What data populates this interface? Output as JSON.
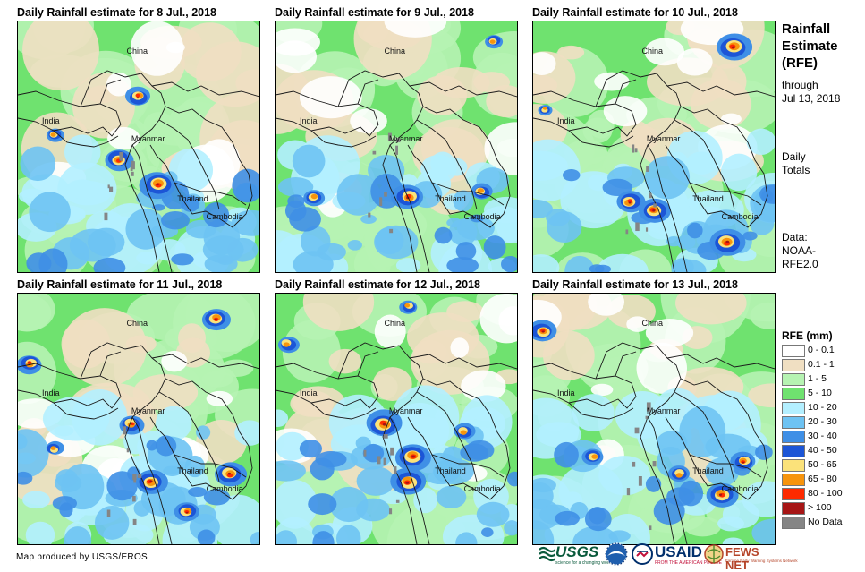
{
  "panels": [
    {
      "title": "Daily Rainfall estimate for 8 Jul., 2018",
      "seed": 8,
      "heavy": [
        [
          0.5,
          0.3,
          0.7
        ],
        [
          0.58,
          0.65,
          1.0
        ],
        [
          0.42,
          0.55,
          0.8
        ],
        [
          0.15,
          0.45,
          0.5
        ]
      ]
    },
    {
      "title": "Daily Rainfall estimate for 9 Jul., 2018",
      "seed": 9,
      "heavy": [
        [
          0.55,
          0.7,
          0.9
        ],
        [
          0.16,
          0.7,
          0.6
        ],
        [
          0.85,
          0.68,
          0.6
        ],
        [
          0.9,
          0.08,
          0.5
        ]
      ]
    },
    {
      "title": "Daily Rainfall estimate for 10 Jul., 2018",
      "seed": 10,
      "heavy": [
        [
          0.83,
          0.1,
          1.0
        ],
        [
          0.5,
          0.75,
          0.9
        ],
        [
          0.8,
          0.88,
          1.0
        ],
        [
          0.4,
          0.72,
          0.8
        ],
        [
          0.05,
          0.35,
          0.4
        ]
      ]
    },
    {
      "title": "Daily Rainfall estimate for 11 Jul., 2018",
      "seed": 11,
      "heavy": [
        [
          0.82,
          0.1,
          0.8
        ],
        [
          0.05,
          0.28,
          0.7
        ],
        [
          0.47,
          0.52,
          0.7
        ],
        [
          0.55,
          0.75,
          0.9
        ],
        [
          0.88,
          0.72,
          0.9
        ],
        [
          0.7,
          0.87,
          0.7
        ],
        [
          0.15,
          0.62,
          0.5
        ]
      ]
    },
    {
      "title": "Daily Rainfall estimate for 12 Jul., 2018",
      "seed": 12,
      "heavy": [
        [
          0.45,
          0.52,
          1.0
        ],
        [
          0.57,
          0.65,
          1.0
        ],
        [
          0.55,
          0.75,
          1.0
        ],
        [
          0.05,
          0.2,
          0.6
        ],
        [
          0.55,
          0.05,
          0.5
        ],
        [
          0.78,
          0.55,
          0.6
        ]
      ]
    },
    {
      "title": "Daily Rainfall estimate for 13 Jul., 2018",
      "seed": 13,
      "heavy": [
        [
          0.04,
          0.15,
          0.8
        ],
        [
          0.78,
          0.8,
          0.9
        ],
        [
          0.25,
          0.65,
          0.6
        ],
        [
          0.87,
          0.67,
          0.7
        ],
        [
          0.6,
          0.72,
          0.6
        ]
      ]
    }
  ],
  "map_labels": {
    "china": "China",
    "india": "India",
    "myanmar": "Myanmar",
    "thailand": "Thailand",
    "cambodia": "Cambodia"
  },
  "sidebar": {
    "title_line1": "Rainfall",
    "title_line2": "Estimate",
    "title_line3": "(RFE)",
    "through": "through",
    "date": "Jul 13, 2018",
    "daily": "Daily",
    "totals": "Totals",
    "data_label": "Data:",
    "data_source1": "NOAA-",
    "data_source2": "RFE2.0"
  },
  "legend": {
    "title": "RFE (mm)",
    "items": [
      {
        "label": "0 - 0.1",
        "color": "#ffffff"
      },
      {
        "label": "0.1 - 1",
        "color": "#f0dfc2"
      },
      {
        "label": "1 - 5",
        "color": "#b6f3b2"
      },
      {
        "label": "5 - 10",
        "color": "#6fe26f"
      },
      {
        "label": "10 - 20",
        "color": "#b3efff"
      },
      {
        "label": "20 - 30",
        "color": "#6ec3f3"
      },
      {
        "label": "30 - 40",
        "color": "#3f8fe6"
      },
      {
        "label": "40 - 50",
        "color": "#1c55d6"
      },
      {
        "label": "50 - 65",
        "color": "#fbe27a"
      },
      {
        "label": "65 - 80",
        "color": "#f7940d"
      },
      {
        "label": "80 - 100",
        "color": "#fe2a00"
      },
      {
        "label": "> 100",
        "color": "#a61515"
      },
      {
        "label": "No Data",
        "color": "#858585"
      }
    ]
  },
  "footer": {
    "credit": "Map produced by USGS/EROS",
    "usgs": "USGS",
    "usgs_tag": "science for a changing world",
    "usaid": "USAID",
    "usaid_tag": "FROM THE AMERICAN PEOPLE",
    "fews": "FEWS NET",
    "fews_tag": "Famine Early Warning Systems Network"
  }
}
